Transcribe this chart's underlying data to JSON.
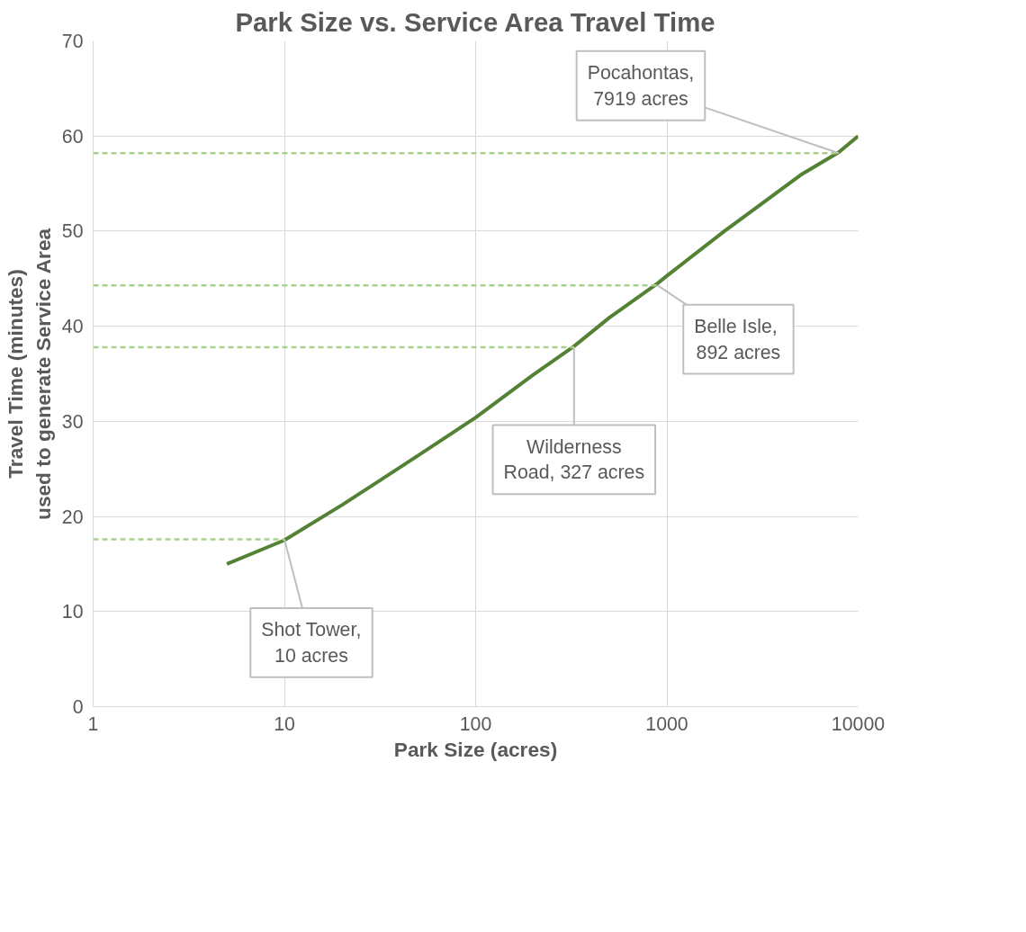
{
  "chart_data": {
    "type": "line",
    "title": "Park Size vs. Service Area Travel Time",
    "xlabel": "Park Size (acres)",
    "ylabel": "Travel Time (minutes)\nused to generate Service Area",
    "log": "x",
    "xlim": [
      1,
      10000
    ],
    "xticks": [
      1,
      10,
      100,
      1000,
      10000
    ],
    "ylim": [
      0,
      70
    ],
    "yticks": [
      0,
      10,
      20,
      30,
      40,
      50,
      60,
      70
    ],
    "grid": true,
    "marker": "none",
    "series": [
      {
        "color": "#548235",
        "line_style": "solid",
        "x": [
          5,
          10,
          20,
          30,
          50,
          100,
          200,
          327,
          500,
          892,
          1000,
          2000,
          3000,
          5000,
          7919,
          10000
        ],
        "values": [
          15,
          17.5,
          21.2,
          23.5,
          26.4,
          30.4,
          34.9,
          37.9,
          40.9,
          44.5,
          45.3,
          50,
          52.6,
          55.9,
          58.3,
          60
        ]
      },
      {
        "color": "#a9d18e",
        "line_style": "dashed",
        "x": [
          1,
          10
        ],
        "values": [
          17.6,
          17.6
        ]
      },
      {
        "color": "#a9d18e",
        "line_style": "dashed",
        "x": [
          1,
          327
        ],
        "values": [
          37.8,
          37.8
        ]
      },
      {
        "color": "#a9d18e",
        "line_style": "dashed",
        "x": [
          1,
          892
        ],
        "values": [
          44.3,
          44.3
        ]
      },
      {
        "color": "#a9d18e",
        "line_style": "dashed",
        "x": [
          1,
          7919
        ],
        "values": [
          58.2,
          58.2
        ]
      }
    ],
    "annotations": [
      {
        "text": "Shot Tower,\n10 acres",
        "x": 10,
        "y": 17.6
      },
      {
        "text": "Wilderness\nRoad, 327 acres",
        "x": 327,
        "y": 37.8
      },
      {
        "text": "Belle  Isle,\n892 acres",
        "x": 892,
        "y": 44.3
      },
      {
        "text": "Pocahontas,\n7919 acres",
        "x": 7919,
        "y": 58.2
      }
    ]
  }
}
